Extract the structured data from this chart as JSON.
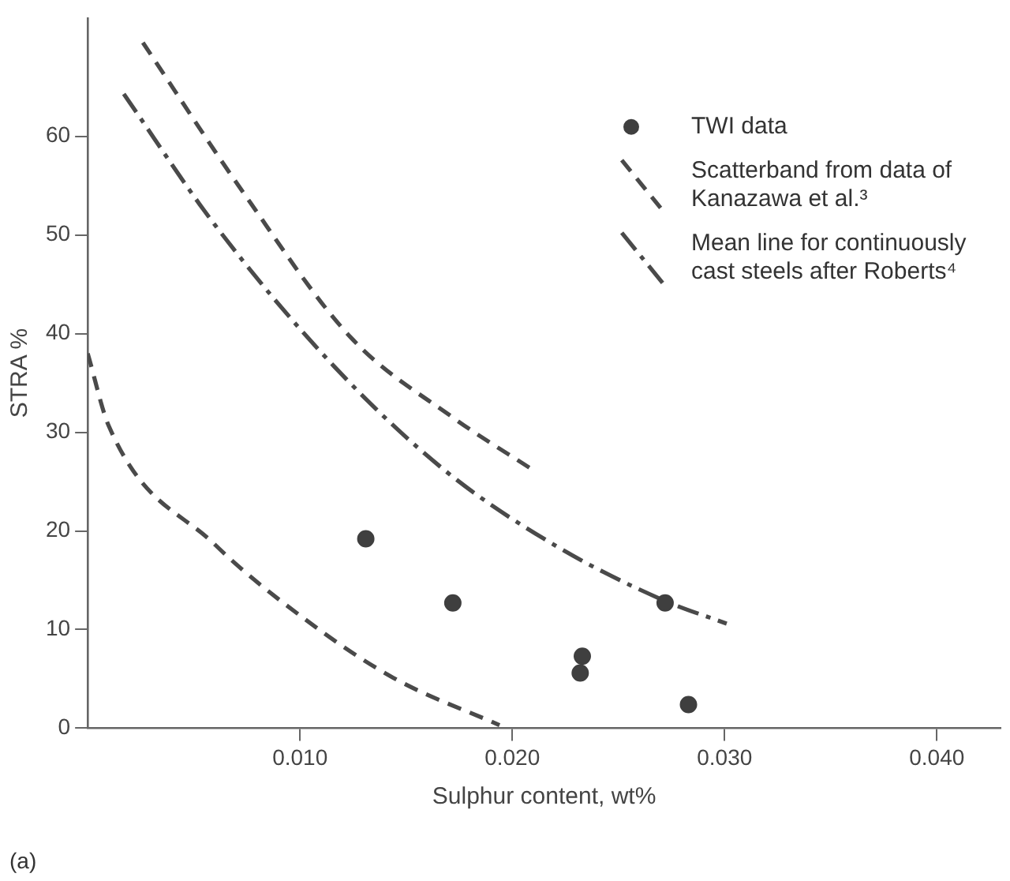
{
  "chart_data": {
    "type": "scatter",
    "xlabel": "Sulphur content, wt%",
    "ylabel": "STRA %",
    "xlim": [
      0,
      0.043
    ],
    "ylim": [
      0,
      72
    ],
    "xticks": [
      {
        "value": 0.01,
        "label": "0.010"
      },
      {
        "value": 0.02,
        "label": "0.020"
      },
      {
        "value": 0.03,
        "label": "0.030"
      },
      {
        "value": 0.04,
        "label": "0.040"
      }
    ],
    "yticks": [
      0,
      10,
      20,
      30,
      40,
      50,
      60
    ],
    "grid": false,
    "legend": "top right",
    "annotations": [
      "(a)"
    ],
    "series": [
      {
        "name": "TWI data",
        "marker": "circle",
        "color": "#3f3f3f",
        "x": [
          0.0131,
          0.0172,
          0.0272,
          0.0233,
          0.0232,
          0.0283
        ],
        "values": [
          19.2,
          12.7,
          12.7,
          7.3,
          5.6,
          2.4
        ]
      },
      {
        "name": "Scatterband from data of Kanazawa et al.³",
        "type": "line",
        "marker": "none",
        "line_style": "dashed",
        "color": "#4a4a4a",
        "x": [
          0.0026,
          0.0073,
          0.0124,
          0.0172,
          0.0211
        ],
        "values": [
          69.5,
          54.4,
          39.6,
          31.5,
          26
        ]
      },
      {
        "type": "line",
        "marker": "none",
        "line_style": "dashed",
        "color": "#4a4a4a",
        "x": [
          0,
          0.001,
          0.006,
          0.0102,
          0.0144,
          0.0194
        ],
        "values": [
          38,
          30.6,
          18.6,
          11.1,
          5.1,
          0.3
        ]
      },
      {
        "name": "Mean line for continuously cast steels after Roberts⁴",
        "type": "line",
        "marker": "none",
        "line_style": "dashdot",
        "color": "#4a4a4a",
        "x": [
          0.0017,
          0.006,
          0.0116,
          0.0169,
          0.0222,
          0.0272,
          0.0301
        ],
        "values": [
          64.3,
          51,
          36.7,
          26,
          18.3,
          12.9,
          10.6
        ]
      }
    ]
  }
}
